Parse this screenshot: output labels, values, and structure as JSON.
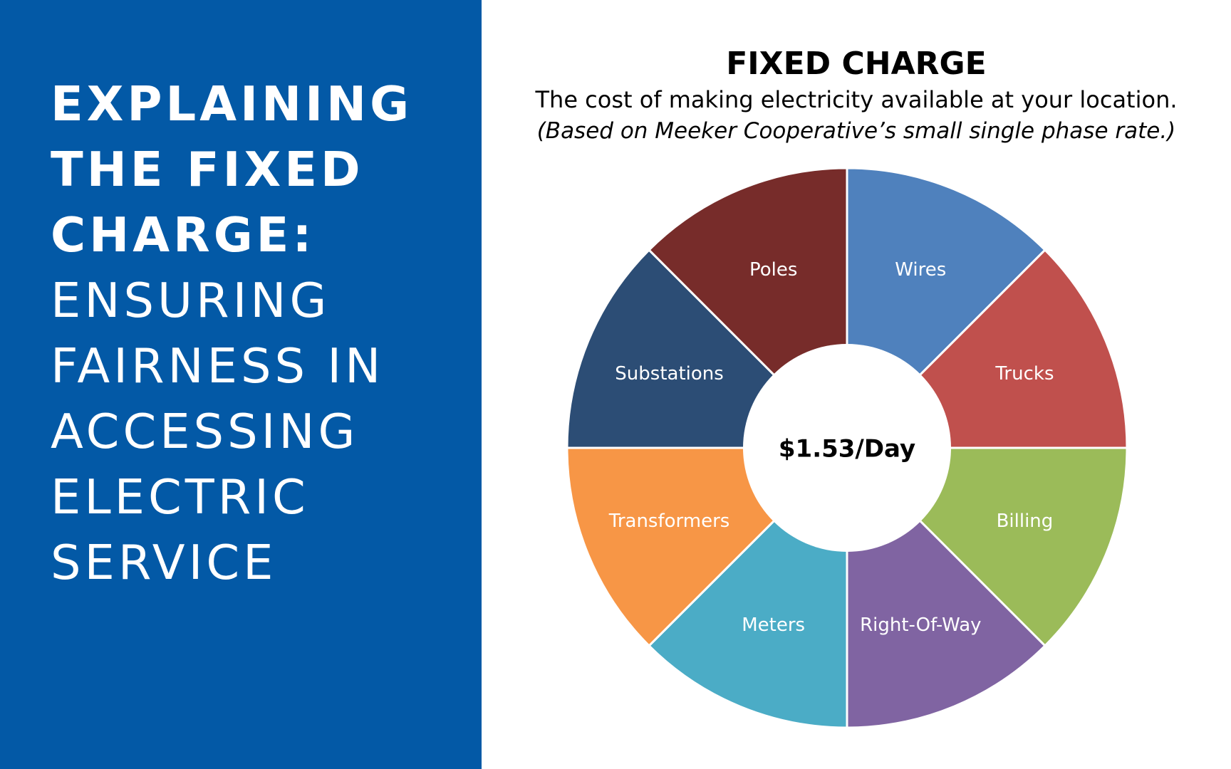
{
  "headline": {
    "bold_lines": [
      "EXPLAINING",
      "THE FIXED",
      "CHARGE:"
    ],
    "normal_lines": [
      "ENSURING",
      "FAIRNESS IN",
      "ACCESSING",
      "ELECTRIC",
      "SERVICE"
    ]
  },
  "colors": {
    "left_panel": "#0359a6",
    "background": "#ffffff"
  },
  "chart_data": {
    "type": "pie",
    "title": "FIXED CHARGE",
    "subtitle": "The cost of making electricity available at your location.",
    "note": "(Based on Meeker Cooperative’s small single phase rate.)",
    "center_label": "$1.53/Day",
    "legend": "none",
    "slices": [
      {
        "label": "Wires",
        "value": 1,
        "color": "#4f81bd"
      },
      {
        "label": "Trucks",
        "value": 1,
        "color": "#c0504d"
      },
      {
        "label": "Billing",
        "value": 1,
        "color": "#9bbb59"
      },
      {
        "label": "Right-Of-Way",
        "value": 1,
        "color": "#8064a2"
      },
      {
        "label": "Meters",
        "value": 1,
        "color": "#4bacc6"
      },
      {
        "label": "Transformers",
        "value": 1,
        "color": "#f79646"
      },
      {
        "label": "Substations",
        "value": 1,
        "color": "#2c4d75"
      },
      {
        "label": "Poles",
        "value": 1,
        "color": "#772c2a"
      }
    ]
  }
}
